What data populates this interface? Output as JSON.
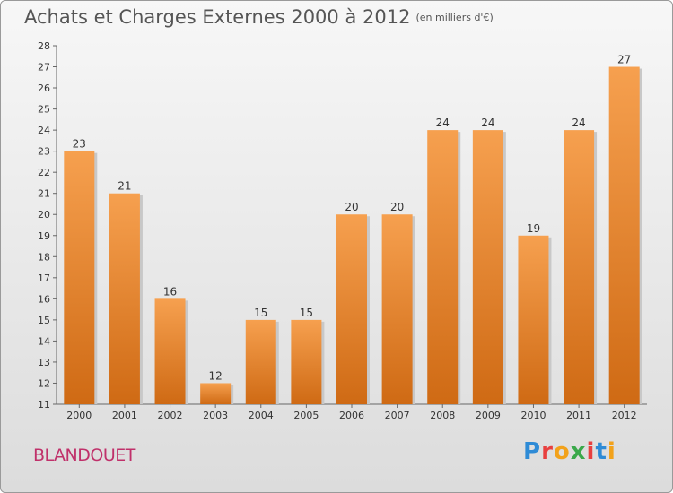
{
  "title": "Achats et Charges Externes 2000 à 2012",
  "unit": "(en milliers d'€)",
  "commune": "BLANDOUET",
  "logo": {
    "letters": [
      "P",
      "r",
      "o",
      "x",
      "i",
      "t",
      "i"
    ],
    "colors": [
      "#2e8bd6",
      "#e8403f",
      "#f2a21b",
      "#3aa84a",
      "#e8403f",
      "#2e8bd6",
      "#f2a21b"
    ]
  },
  "chart_data": {
    "type": "bar",
    "categories": [
      "2000",
      "2001",
      "2002",
      "2003",
      "2004",
      "2005",
      "2006",
      "2007",
      "2008",
      "2009",
      "2010",
      "2011",
      "2012"
    ],
    "values": [
      23,
      21,
      16,
      12,
      15,
      15,
      20,
      20,
      24,
      24,
      19,
      24,
      27
    ],
    "ylim": [
      11,
      28
    ],
    "yticks": [
      11,
      12,
      13,
      14,
      15,
      16,
      17,
      18,
      19,
      20,
      21,
      22,
      23,
      24,
      25,
      26,
      27,
      28
    ],
    "grid": false,
    "bar_color_top": "#f6a04f",
    "bar_color_bottom": "#cf6a14"
  }
}
